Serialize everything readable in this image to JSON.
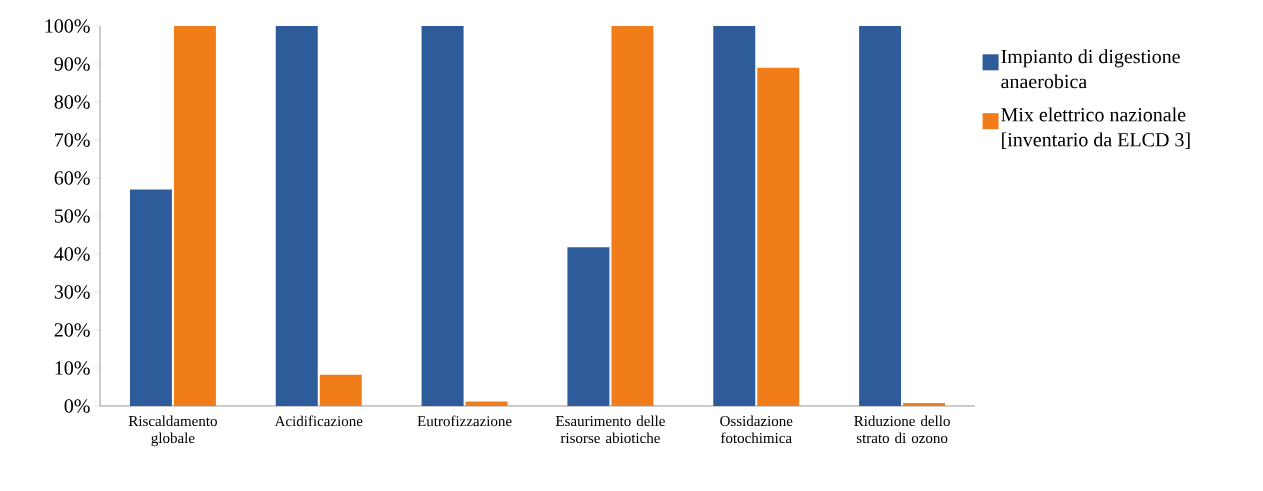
{
  "chart_data": {
    "type": "bar",
    "categories": [
      "Riscaldamento globale",
      "Acidificazione",
      "Eutrofizzazione",
      "Esaurimento delle risorse abiotiche",
      "Ossidazione fotochimica",
      "Riduzione dello strato di ozono"
    ],
    "series": [
      {
        "name": "Impianto di digestione anaerobica",
        "color": "#2e5c9a",
        "values": [
          57,
          100,
          100,
          41.8,
          100,
          100
        ]
      },
      {
        "name": "Mix elettrico nazionale [inventario da ELCD 3]",
        "color": "#f07c1a",
        "values": [
          100,
          8.2,
          1.2,
          100,
          89,
          0.8
        ]
      }
    ],
    "ylim": [
      0,
      100
    ],
    "yticks": [
      {
        "value": 0,
        "label": "0%"
      },
      {
        "value": 10,
        "label": "10%"
      },
      {
        "value": 20,
        "label": "20%"
      },
      {
        "value": 30,
        "label": "30%"
      },
      {
        "value": 40,
        "label": "40%"
      },
      {
        "value": 50,
        "label": "50%"
      },
      {
        "value": 60,
        "label": "60%"
      },
      {
        "value": 70,
        "label": "70%"
      },
      {
        "value": 80,
        "label": "80%"
      },
      {
        "value": 90,
        "label": "90%"
      },
      {
        "value": 100,
        "label": "100%"
      }
    ],
    "grid": false,
    "legend": "right"
  }
}
